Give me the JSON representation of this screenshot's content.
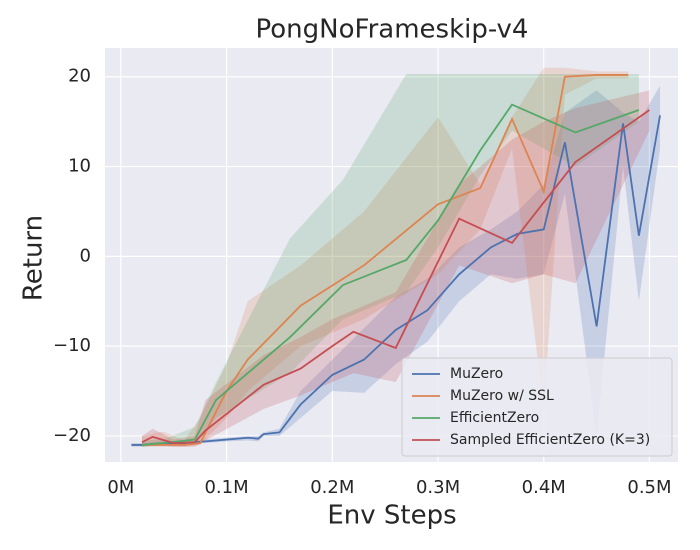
{
  "chart_data": {
    "type": "line",
    "title": "PongNoFrameskip-v4",
    "x_label": "Env Steps",
    "y_label": "Return",
    "xlim": [
      -0.015,
      0.527
    ],
    "ylim": [
      -22.9,
      23.2
    ],
    "xticks": [
      {
        "value": 0,
        "label": "0M"
      },
      {
        "value": 0.1,
        "label": "0.1M"
      },
      {
        "value": 0.2,
        "label": "0.2M"
      },
      {
        "value": 0.3,
        "label": "0.3M"
      },
      {
        "value": 0.4,
        "label": "0.4M"
      },
      {
        "value": 0.5,
        "label": "0.5M"
      }
    ],
    "yticks": [
      {
        "value": -20,
        "label": "−20"
      },
      {
        "value": -10,
        "label": "−10"
      },
      0,
      10,
      20
    ],
    "grid": true,
    "legend_position": "lower right",
    "series": [
      {
        "name": "MuZero",
        "color": "#4c72b0",
        "x": [
          0.01,
          0.02,
          0.04,
          0.06,
          0.08,
          0.1,
          0.12,
          0.13,
          0.135,
          0.15,
          0.17,
          0.2,
          0.23,
          0.26,
          0.29,
          0.32,
          0.35,
          0.375,
          0.4,
          0.42,
          0.45,
          0.475,
          0.49,
          0.51
        ],
        "values": [
          -21,
          -21,
          -20.8,
          -20.8,
          -20.6,
          -20.4,
          -20.2,
          -20.3,
          -19.8,
          -19.6,
          -16.5,
          -13.2,
          -11.5,
          -8.2,
          -6,
          -2,
          1,
          2.5,
          3,
          12.7,
          -7.8,
          14.8,
          2.3,
          15.7
        ],
        "lower": [
          -21.2,
          -21.2,
          -21,
          -21,
          -20.8,
          -20.6,
          -20.5,
          -20.6,
          -20,
          -20,
          -18,
          -15,
          -15.2,
          -12,
          -9.5,
          -5,
          -2,
          -2.5,
          -2,
          7,
          -20,
          10,
          -5,
          12
        ],
        "upper": [
          -20.8,
          -20.8,
          -20.6,
          -20.6,
          -20.4,
          -20.2,
          -20,
          -20,
          -19.6,
          -19.2,
          -15,
          -11.5,
          -8,
          -4.5,
          -2.5,
          1,
          3,
          5,
          8,
          16,
          18.5,
          16,
          15,
          19
        ]
      },
      {
        "name": "MuZero w/ SSL",
        "color": "#dd8452",
        "x": [
          0.02,
          0.04,
          0.06,
          0.075,
          0.1,
          0.12,
          0.17,
          0.23,
          0.3,
          0.34,
          0.37,
          0.4,
          0.42,
          0.45,
          0.48
        ],
        "values": [
          -21,
          -21,
          -21,
          -20.8,
          -15,
          -11.5,
          -5.5,
          -1,
          5.8,
          7.6,
          15.3,
          7.2,
          20,
          20.2,
          20.2
        ],
        "lower": [
          -21.2,
          -21.2,
          -21.2,
          -21,
          -18,
          -15,
          -10,
          -7,
          -2,
          3,
          12,
          -17,
          18,
          19.8,
          19.8
        ],
        "upper": [
          -20,
          -19.5,
          -20.5,
          -18,
          -12,
          -5,
          -1,
          5,
          15.5,
          8,
          15.5,
          21,
          21,
          20.6,
          20.6
        ]
      },
      {
        "name": "EfficientZero",
        "color": "#55a868",
        "x": [
          0.02,
          0.04,
          0.07,
          0.09,
          0.16,
          0.21,
          0.27,
          0.3,
          0.34,
          0.37,
          0.43,
          0.49
        ],
        "values": [
          -21,
          -20.8,
          -20.4,
          -16,
          -9,
          -3.2,
          -0.4,
          4,
          11.8,
          16.9,
          13.8,
          16.3
        ],
        "lower": [
          -21.2,
          -21,
          -20.8,
          -18,
          -13,
          -7,
          -4,
          1,
          9,
          14,
          10,
          15
        ],
        "upper": [
          -20.5,
          -20.4,
          -19,
          -14,
          2,
          8.5,
          20.3,
          20.3,
          20.3,
          20.3,
          20.3,
          20.3
        ]
      },
      {
        "name": "Sampled EfficientZero (K=3)",
        "color": "#c44e52",
        "x": [
          0.02,
          0.03,
          0.05,
          0.07,
          0.08,
          0.135,
          0.17,
          0.2,
          0.22,
          0.26,
          0.32,
          0.37,
          0.4,
          0.43,
          0.5
        ],
        "values": [
          -20.7,
          -20.1,
          -20.8,
          -20.7,
          -19.4,
          -14.3,
          -12.5,
          -10,
          -8.4,
          -10.2,
          4.2,
          1.5,
          6,
          10.5,
          16.3
        ],
        "lower": [
          -21.2,
          -21,
          -21.2,
          -21.2,
          -20.5,
          -17,
          -15.5,
          -14,
          -13,
          -14,
          -1,
          -3,
          -2,
          -3,
          14
        ],
        "upper": [
          -20,
          -19.2,
          -20.4,
          -20,
          -16,
          -11,
          -9,
          -7,
          -6,
          -4,
          8,
          13,
          15,
          16.5,
          18.5
        ]
      }
    ]
  }
}
